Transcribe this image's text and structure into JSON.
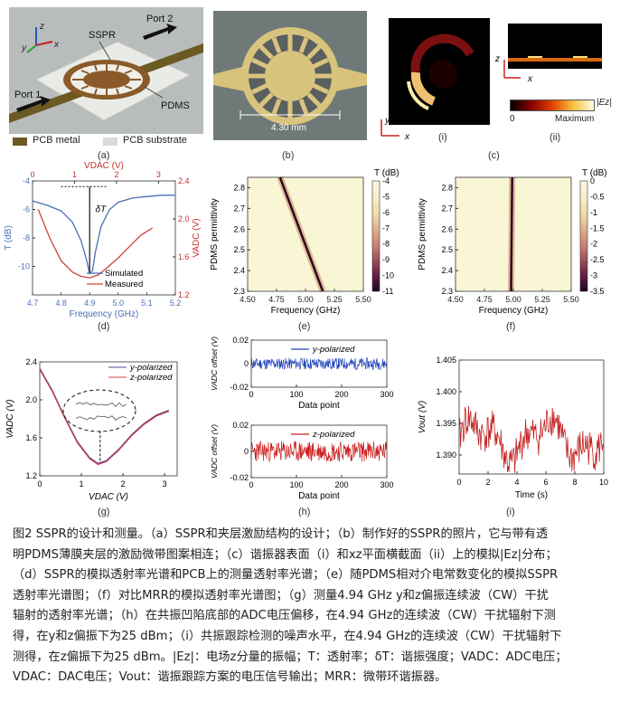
{
  "panels": {
    "a": {
      "label": "(a)",
      "ssr": "SSPR",
      "port2": "Port 2",
      "port1": "Port 1",
      "pdms": "PDMS",
      "legend_metal": "PCB metal",
      "legend_substrate": "PCB substrate",
      "axis_z": "z",
      "axis_y": "y",
      "axis_x": "x"
    },
    "b": {
      "label": "(b)",
      "scale": "4.30 mm"
    },
    "c": {
      "label": "(c)",
      "sub_i": "(i)",
      "sub_ii": "(ii)",
      "axis_y": "y",
      "axis_x": "x",
      "axis_z": "z",
      "axis_x2": "x",
      "cb_title": "|Ez|",
      "cb_min": "0",
      "cb_max": "Maximum"
    },
    "d": {
      "label": "(d)"
    },
    "e": {
      "label": "(e)"
    },
    "f": {
      "label": "(f)"
    },
    "g": {
      "label": "(g)"
    },
    "h": {
      "label": "(h)"
    },
    "i": {
      "label": "(i)"
    }
  },
  "chart_data": [
    {
      "id": "d",
      "type": "line",
      "xlabel": "Frequency (GHz)",
      "ylabel": "T (dB)",
      "x2label": "VDAC (V)",
      "y2label": "VADC (V)",
      "xlim": [
        4.7,
        5.2
      ],
      "ylim": [
        -12,
        -4
      ],
      "x2lim": [
        0,
        3.4
      ],
      "y2lim": [
        1.2,
        2.4
      ],
      "xticks": [
        "4.7",
        "4.8",
        "4.9",
        "5.0",
        "5.1",
        "5.2"
      ],
      "yticks": [
        "-4",
        "-6",
        "-8",
        "-10"
      ],
      "x2ticks": [
        "0",
        "1",
        "2",
        "3"
      ],
      "y2ticks": [
        "2.4",
        "2.0",
        "1.6",
        "1.2"
      ],
      "annotation": "δT",
      "series": [
        {
          "name": "Simulated",
          "color": "#4a6fb5",
          "x": [
            4.7,
            4.75,
            4.8,
            4.84,
            4.87,
            4.89,
            4.9,
            4.91,
            4.92,
            4.94,
            4.97,
            5.0,
            5.05,
            5.1,
            5.15,
            5.2
          ],
          "y": [
            -5.4,
            -5.7,
            -6.1,
            -6.9,
            -8.2,
            -9.6,
            -10.5,
            -10.3,
            -9.0,
            -7.2,
            -6.0,
            -5.5,
            -5.2,
            -5.1,
            -5.0,
            -5.0
          ]
        },
        {
          "name": "Measured",
          "color": "#d04040",
          "x": [
            4.72,
            4.76,
            4.8,
            4.84,
            4.87,
            4.9,
            4.93,
            4.96,
            5.0,
            5.04,
            5.08,
            5.12
          ],
          "y": [
            -6.0,
            -8.0,
            -9.6,
            -10.4,
            -10.7,
            -10.8,
            -10.6,
            -10.1,
            -9.4,
            -8.6,
            -7.8,
            -7.3
          ]
        }
      ]
    },
    {
      "id": "e",
      "type": "heatmap",
      "xlabel": "Frequency (GHz)",
      "ylabel": "PDMS permittivity",
      "cblabel": "T (dB)",
      "xlim": [
        4.5,
        5.5
      ],
      "ylim": [
        2.3,
        2.85
      ],
      "xticks": [
        "4.50",
        "4.75",
        "5.00",
        "5.25",
        "5.50"
      ],
      "yticks": [
        "2.8",
        "2.7",
        "2.6",
        "2.5",
        "2.4",
        "2.3"
      ],
      "cbticks": [
        "-4",
        "-5",
        "-6",
        "-7",
        "-8",
        "-9",
        "-10",
        "-11"
      ],
      "resonance": {
        "x": [
          4.78,
          5.15
        ],
        "y": [
          2.85,
          2.3
        ]
      }
    },
    {
      "id": "f",
      "type": "heatmap",
      "xlabel": "Frequency (GHz)",
      "ylabel": "PDMS permittivity",
      "cblabel": "T (dB)",
      "xlim": [
        4.5,
        5.5
      ],
      "ylim": [
        2.3,
        2.85
      ],
      "xticks": [
        "4.50",
        "4.75",
        "5.00",
        "5.25",
        "5.50"
      ],
      "yticks": [
        "2.8",
        "2.7",
        "2.6",
        "2.5",
        "2.4",
        "2.3"
      ],
      "cbticks": [
        "0",
        "-0.5",
        "-1",
        "-1.5",
        "-2",
        "-2.5",
        "-3",
        "-3.5"
      ],
      "resonance": {
        "x": [
          4.99,
          4.98
        ],
        "y": [
          2.85,
          2.3
        ]
      }
    },
    {
      "id": "g",
      "type": "line",
      "xlabel": "VDAC (V)",
      "ylabel": "VADC (V)",
      "xlim": [
        0,
        3.3
      ],
      "ylim": [
        1.2,
        2.4
      ],
      "xticks": [
        "0",
        "1",
        "2",
        "3"
      ],
      "yticks": [
        "2.4",
        "2.0",
        "1.6",
        "1.2"
      ],
      "series": [
        {
          "name": "y-polarized",
          "color": "#4a4aa0",
          "x": [
            0,
            0.3,
            0.6,
            0.9,
            1.2,
            1.4,
            1.6,
            1.9,
            2.2,
            2.5,
            2.8,
            3.1
          ],
          "y": [
            2.33,
            2.1,
            1.82,
            1.56,
            1.39,
            1.33,
            1.36,
            1.48,
            1.63,
            1.75,
            1.84,
            1.89
          ]
        },
        {
          "name": "z-polarized",
          "color": "#d04040",
          "x": [
            0,
            0.3,
            0.6,
            0.9,
            1.2,
            1.4,
            1.6,
            1.9,
            2.2,
            2.5,
            2.8,
            3.1
          ],
          "y": [
            2.32,
            2.09,
            1.81,
            1.55,
            1.38,
            1.32,
            1.35,
            1.47,
            1.62,
            1.74,
            1.83,
            1.88
          ]
        }
      ]
    },
    {
      "id": "h-top",
      "type": "line",
      "xlabel": "Data point",
      "ylabel": "VADC offset (V)",
      "xlim": [
        0,
        300
      ],
      "ylim": [
        -0.02,
        0.02
      ],
      "xticks": [
        "0",
        "100",
        "200",
        "300"
      ],
      "yticks": [
        "0.02",
        "0",
        "-0.02"
      ],
      "series": [
        {
          "name": "y-polarized",
          "color": "#2244bb"
        }
      ]
    },
    {
      "id": "h-bottom",
      "type": "line",
      "xlabel": "Data point",
      "ylabel": "VADC offset (V)",
      "xlim": [
        0,
        300
      ],
      "ylim": [
        -0.02,
        0.02
      ],
      "xticks": [
        "0",
        "100",
        "200",
        "300"
      ],
      "yticks": [
        "0.02",
        "0",
        "-0.02"
      ],
      "series": [
        {
          "name": "z-polarized",
          "color": "#cc2222"
        }
      ]
    },
    {
      "id": "i",
      "type": "line",
      "xlabel": "Time (s)",
      "ylabel": "Vout (V)",
      "xlim": [
        0,
        10
      ],
      "ylim": [
        1.387,
        1.405
      ],
      "xticks": [
        "0",
        "2",
        "4",
        "6",
        "8",
        "10"
      ],
      "yticks": [
        "1.405",
        "1.400",
        "1.395",
        "1.390"
      ],
      "series": [
        {
          "name": "Vout",
          "color": "#c02020"
        }
      ]
    }
  ],
  "caption": {
    "lines": [
      "图2 SSPR的设计和测量。（a）SSPR和夹层激励结构的设计；（b）制作好的SSPR的照片，它与带有透",
      "明PDMS薄膜夹层的激励微带图案相连；（c）谐振器表面（i）和xz平面横截面（ii）上的模拟|Ez|分布；",
      "（d）SSPR的模拟透射率光谱和PCB上的测量透射率光谱；（e）随PDMS相对介电常数变化的模拟SSPR",
      "透射率光谱图；（f）对比MRR的模拟透射率光谱图；（g）测量4.94 GHz y和z偏振连续波（CW）干扰",
      "辐射的透射率光谱；（h）在共振凹陷底部的ADC电压偏移，在4.94 GHz的连续波（CW）干扰辐射下测",
      "得，在y和z偏振下为25 dBm；（i）共振跟踪检测的噪声水平，在4.94 GHz的连续波（CW）干扰辐射下",
      "测得，在z偏振下为25 dBm。|Ez|：电场z分量的振幅；T：透射率；δT：谐振强度；VADC：ADC电压；",
      "VDAC：DAC电压；Vout：谐振跟踪方案的电压信号输出；MRR：微带环谐振器。"
    ]
  }
}
